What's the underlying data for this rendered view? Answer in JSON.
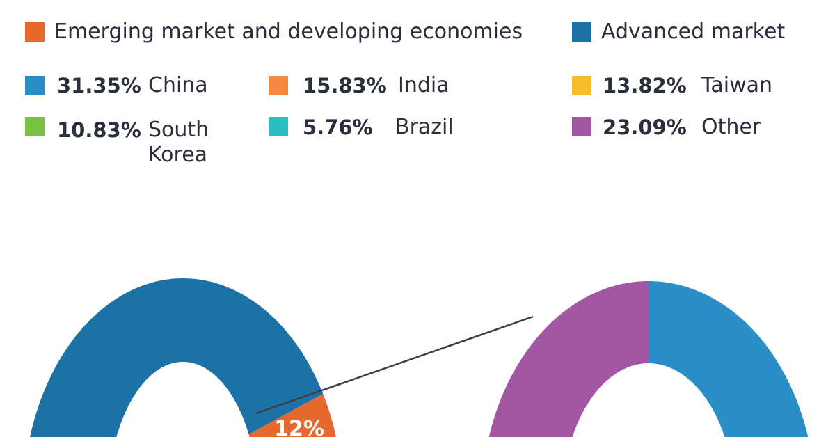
{
  "chart_data": [
    {
      "type": "pie",
      "variant": "donut",
      "legend_placement": "top",
      "categories": [
        "Emerging market and developing economies",
        "Advanced market"
      ],
      "values": [
        12,
        88
      ],
      "colors": [
        "#E5692E",
        "#1C71A6"
      ],
      "data_labels": [
        "12%"
      ]
    },
    {
      "type": "pie",
      "variant": "donut",
      "legend_placement": "top",
      "categories": [
        "China",
        "India",
        "Taiwan",
        "South Korea",
        "Brazil",
        "Other"
      ],
      "values": [
        31.35,
        15.83,
        13.82,
        10.83,
        5.76,
        23.09
      ],
      "value_labels": [
        "31.35%",
        "15.83%",
        "13.82%",
        "10.83%",
        "5.76%",
        "23.09%"
      ],
      "colors": [
        "#2A8FC6",
        "#F5873F",
        "#F9BC2C",
        "#7AC143",
        "#28BFBE",
        "#A157A1"
      ]
    }
  ]
}
